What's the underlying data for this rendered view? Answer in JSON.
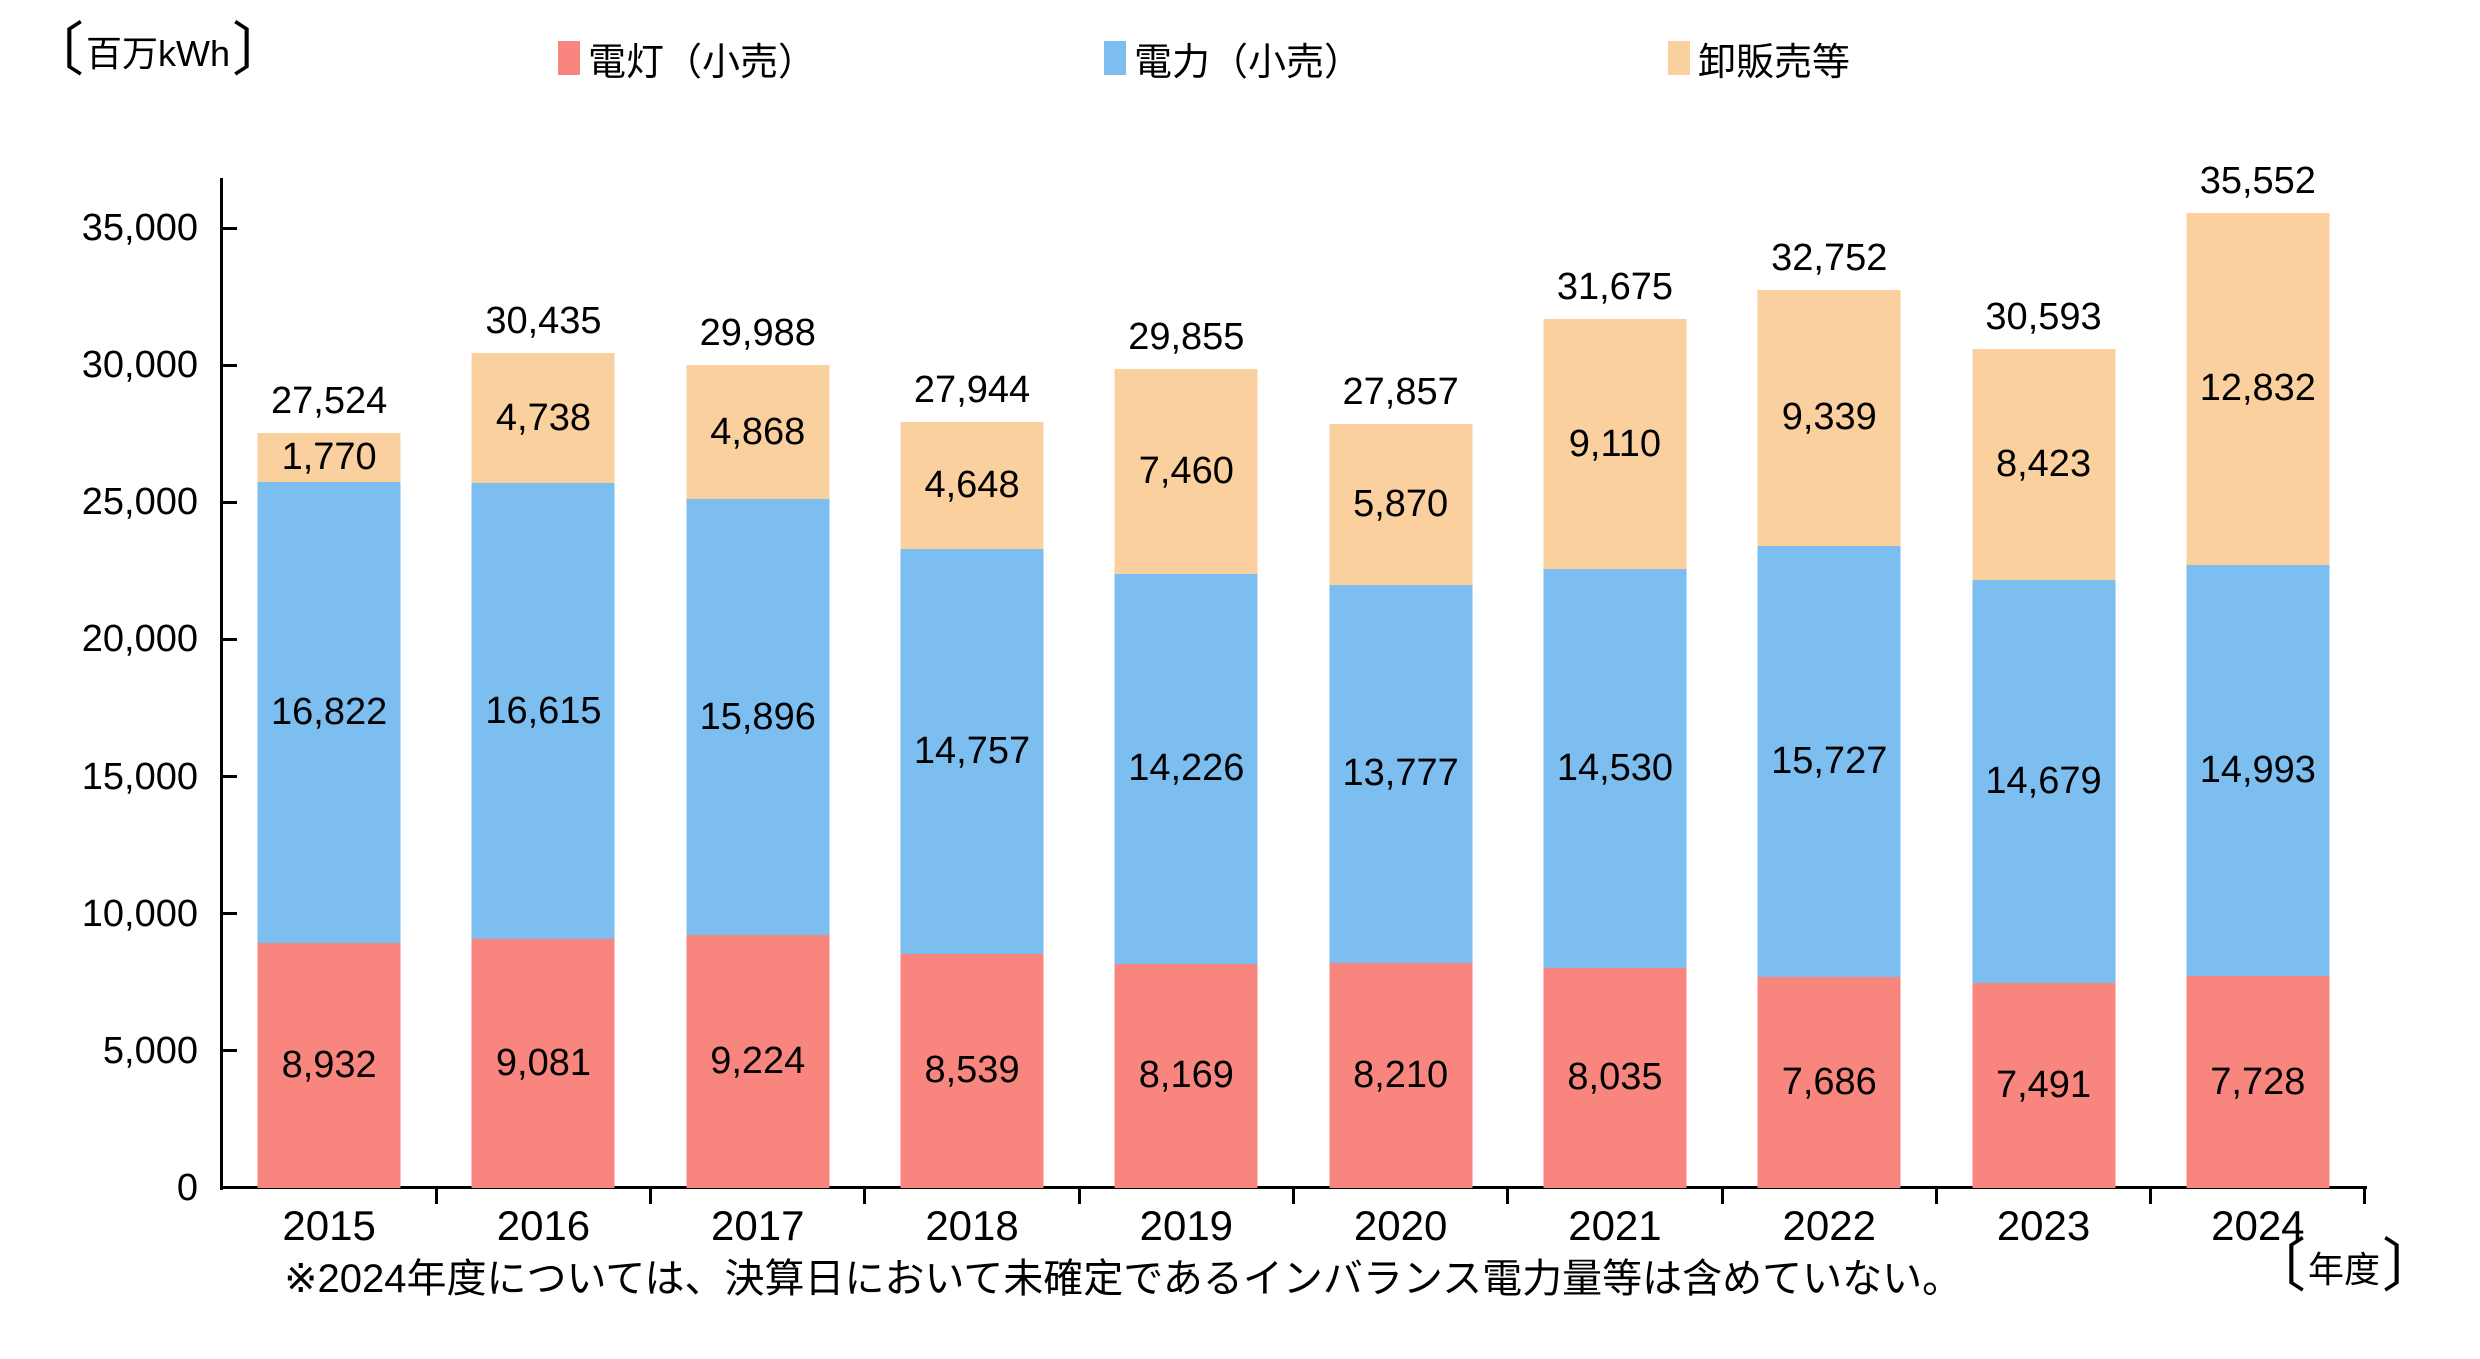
{
  "unit_label": {
    "open": "〔",
    "text": "百万kWh",
    "close": "〕"
  },
  "xaxis_unit": {
    "open": "〔",
    "text": "年度",
    "close": "〕"
  },
  "footnote": "※2024年度については、決算日において未確定であるインバランス電力量等は含めていない。",
  "legend": [
    {
      "label": "電灯（小売）",
      "color": "#F8867F"
    },
    {
      "label": "電力（小売）",
      "color": "#7DBEF0"
    },
    {
      "label": "卸販売等",
      "color": "#FAD19E"
    }
  ],
  "chart_data": {
    "type": "bar",
    "stacked": true,
    "title": "",
    "xlabel": "年度",
    "ylabel": "百万kWh",
    "categories": [
      "2015",
      "2016",
      "2017",
      "2018",
      "2019",
      "2020",
      "2021",
      "2022",
      "2023",
      "2024"
    ],
    "series": [
      {
        "name": "電灯（小売）",
        "color": "#F8867F",
        "values": [
          8932,
          9081,
          9224,
          8539,
          8169,
          8210,
          8035,
          7686,
          7491,
          7728
        ]
      },
      {
        "name": "電力（小売）",
        "color": "#7DBEF0",
        "values": [
          16822,
          16615,
          15896,
          14757,
          14226,
          13777,
          14530,
          15727,
          14679,
          14993
        ]
      },
      {
        "name": "卸販売等",
        "color": "#FAD19E",
        "values": [
          1770,
          4738,
          4868,
          4648,
          7460,
          5870,
          9110,
          9339,
          8423,
          12832
        ]
      }
    ],
    "total_labels": [
      "27,524",
      "30,435",
      "29,988",
      "27,944",
      "29,855",
      "27,857",
      "31,675",
      "32,752",
      "30,593",
      "35,552"
    ],
    "ylim": [
      0,
      35000
    ],
    "ytick_step": 5000,
    "yticks": [
      "0",
      "5,000",
      "10,000",
      "15,000",
      "20,000",
      "25,000",
      "30,000",
      "35,000"
    ],
    "grid": false,
    "legend_position": "top"
  }
}
